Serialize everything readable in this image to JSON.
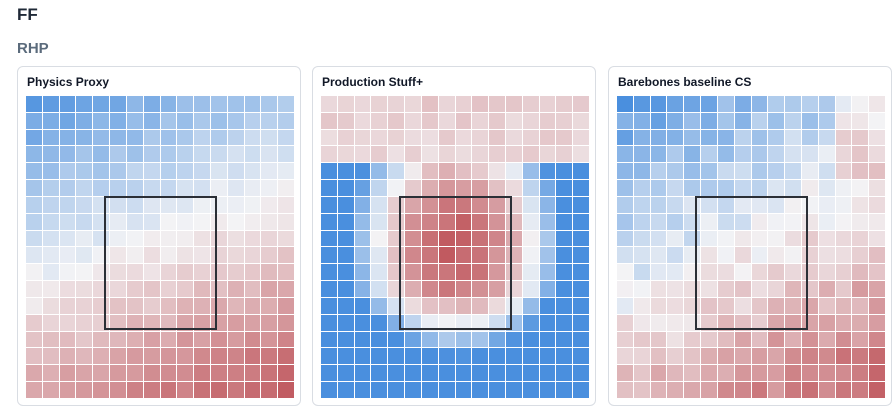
{
  "header": {
    "title": "FF",
    "subtitle": "RHP"
  },
  "panels": [
    {
      "title": "Physics Proxy",
      "model": "physics"
    },
    {
      "title": "Production Stuff+",
      "model": "production"
    },
    {
      "title": "Barebones baseline CS",
      "model": "barebones"
    }
  ],
  "colors": {
    "cold": "#4a8fde",
    "neutral": "#f3f3f5",
    "hot": "#c0585e"
  }
}
